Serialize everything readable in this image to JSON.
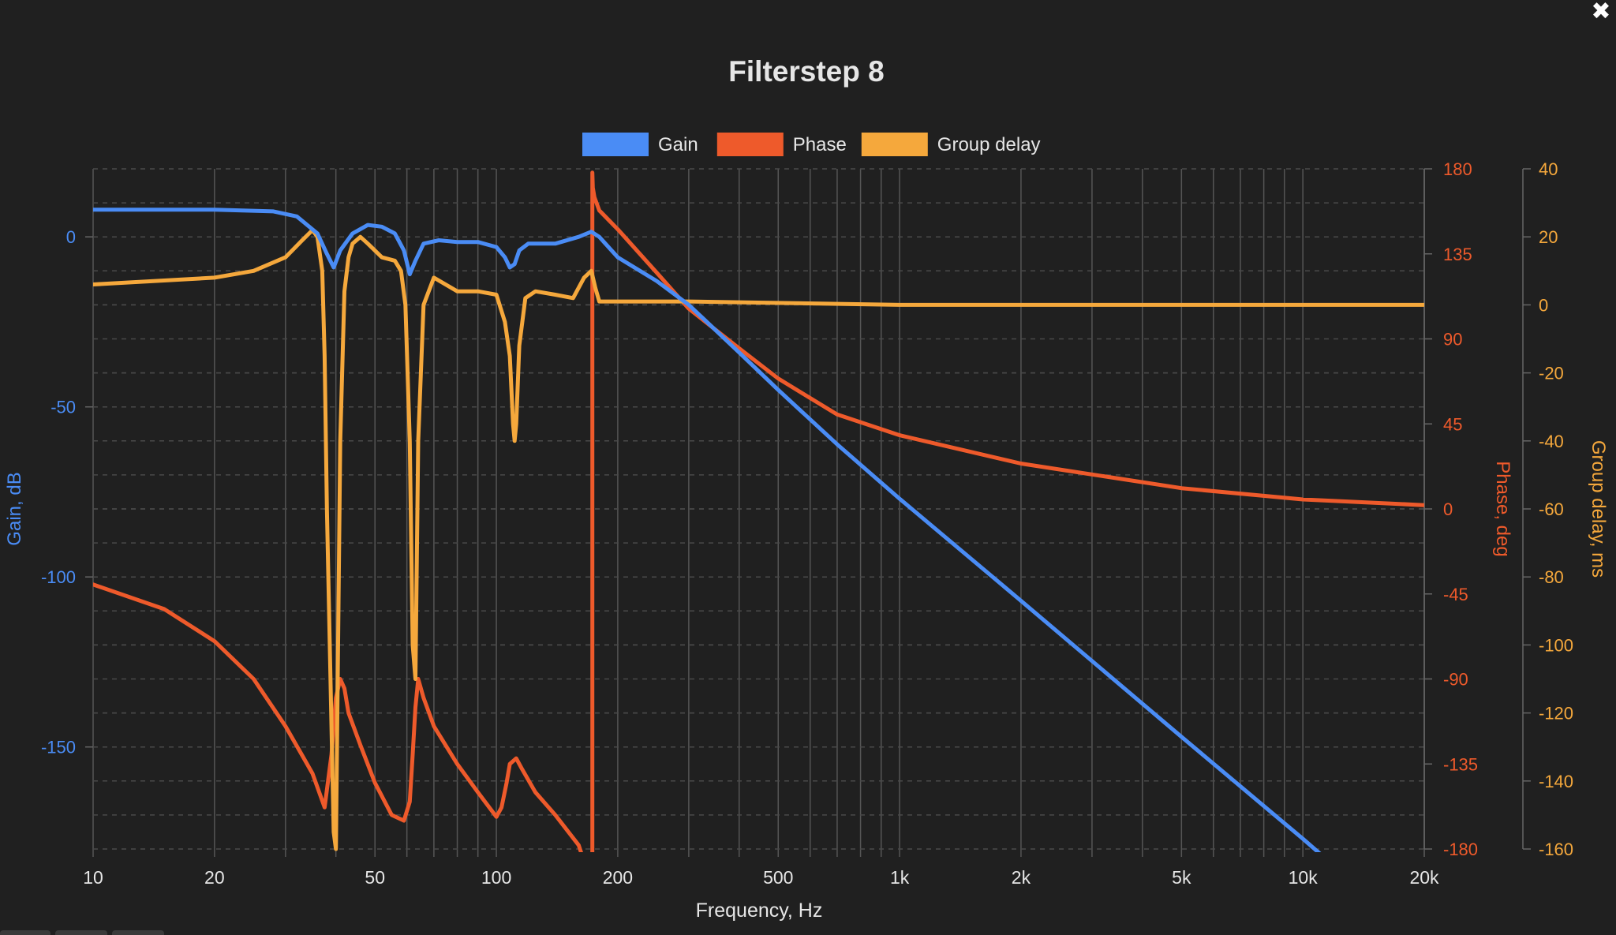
{
  "window": {
    "close_glyph": "✖"
  },
  "chart_data": {
    "type": "line",
    "title": "Filterstep 8",
    "xlabel": "Frequency, Hz",
    "xscale": "log",
    "xlim": [
      10,
      20000
    ],
    "xticks": [
      {
        "value": 10,
        "label": "10"
      },
      {
        "value": 20,
        "label": "20"
      },
      {
        "value": 50,
        "label": "50"
      },
      {
        "value": 100,
        "label": "100"
      },
      {
        "value": 200,
        "label": "200"
      },
      {
        "value": 500,
        "label": "500"
      },
      {
        "value": 1000,
        "label": "1k"
      },
      {
        "value": 2000,
        "label": "2k"
      },
      {
        "value": 5000,
        "label": "5k"
      },
      {
        "value": 10000,
        "label": "10k"
      },
      {
        "value": 20000,
        "label": "20k"
      }
    ],
    "legend_position": "top-center",
    "grid": true,
    "axes": {
      "gain": {
        "label": "Gain, dB",
        "side": "left",
        "ylim": [
          -180,
          20
        ],
        "ticks": [
          0,
          -50,
          -100,
          -150
        ],
        "color": "#4a8cf5"
      },
      "phase": {
        "label": "Phase, deg",
        "side": "right",
        "ylim": [
          -180,
          180
        ],
        "ticks": [
          180,
          135,
          90,
          45,
          0,
          -45,
          -90,
          -135,
          -180
        ],
        "color": "#ee5a2b"
      },
      "delay": {
        "label": "Group delay, ms",
        "side": "right",
        "ylim": [
          -160,
          40
        ],
        "ticks": [
          40,
          20,
          0,
          -20,
          -40,
          -60,
          -80,
          -100,
          -120,
          -140,
          -160
        ],
        "color": "#f5a83c"
      }
    },
    "series": [
      {
        "name": "Gain",
        "axis": "gain",
        "color": "#4a8cf5",
        "x": [
          10,
          20,
          28,
          32,
          36,
          38,
          39.5,
          41,
          44,
          48,
          52,
          56,
          59,
          61,
          63,
          66,
          72,
          80,
          90,
          100,
          105,
          108,
          111,
          114,
          120,
          140,
          160,
          172,
          180,
          200,
          250,
          300,
          400,
          500,
          700,
          1000,
          2000,
          5000,
          10000,
          20000
        ],
        "y": [
          8,
          8,
          7.5,
          6,
          1,
          -5,
          -9,
          -4,
          1,
          3.5,
          3,
          1,
          -4,
          -11,
          -7,
          -2,
          -1,
          -1.5,
          -1.5,
          -3,
          -6,
          -9,
          -8,
          -4,
          -2,
          -2,
          0,
          1.5,
          0,
          -6,
          -13,
          -20,
          -34,
          -45,
          -61,
          -77,
          -107,
          -147,
          -177,
          -208
        ]
      },
      {
        "name": "Phase",
        "axis": "phase",
        "color": "#ee5a2b",
        "x": [
          10,
          15,
          20,
          25,
          30,
          35,
          37.5,
          39,
          40,
          41,
          42,
          43,
          46,
          50,
          55,
          59,
          61,
          62,
          63,
          64,
          66,
          70,
          80,
          90,
          100,
          103,
          106,
          108,
          112,
          116,
          125,
          140,
          160,
          170,
          172.5,
          173,
          173.5,
          175,
          180,
          200,
          250,
          300,
          400,
          500,
          700,
          1000,
          2000,
          5000,
          10000,
          20000
        ],
        "y": [
          -40,
          -53,
          -70,
          -90,
          -115,
          -140,
          -158,
          -130,
          -100,
          -90,
          -95,
          -108,
          -125,
          -145,
          -162,
          -165,
          -155,
          -130,
          -105,
          -90,
          -100,
          -115,
          -135,
          -150,
          -163,
          -158,
          -145,
          -135,
          -132,
          -138,
          -150,
          -162,
          -178,
          -195,
          -210,
          178,
          170,
          165,
          158,
          148,
          125,
          106,
          85,
          69,
          50,
          39,
          24,
          11,
          5,
          2
        ]
      },
      {
        "name": "Group delay",
        "axis": "delay",
        "color": "#f5a83c",
        "x": [
          10,
          20,
          25,
          30,
          33,
          35,
          36,
          37,
          37.5,
          38,
          39.5,
          40,
          41,
          42,
          43,
          44,
          46,
          48,
          52,
          56,
          58,
          59.5,
          61,
          62,
          63,
          64,
          66,
          70,
          80,
          90,
          100,
          105,
          108,
          110,
          111,
          112,
          114,
          118,
          125,
          140,
          155,
          165,
          172,
          176,
          180,
          200,
          300,
          1000,
          5000,
          20000
        ],
        "y": [
          6,
          8,
          10,
          14,
          19,
          22,
          20,
          10,
          -15,
          -60,
          -155,
          -160,
          -40,
          4,
          14,
          18,
          20,
          18,
          14,
          13,
          10,
          0,
          -40,
          -100,
          -110,
          -40,
          0,
          8,
          4,
          4,
          3,
          -5,
          -15,
          -35,
          -40,
          -35,
          -12,
          2,
          4,
          3,
          2,
          8,
          10,
          5,
          1,
          1,
          1,
          0,
          0,
          0
        ]
      }
    ]
  }
}
